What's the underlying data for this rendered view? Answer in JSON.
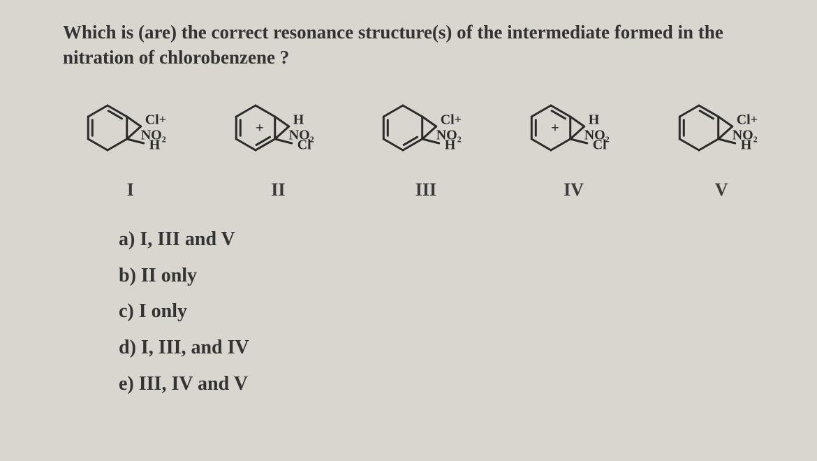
{
  "question": "Which is (are) the correct resonance structure(s) of the intermediate formed in the nitration of chlorobenzene ?",
  "structures": [
    {
      "label": "I",
      "top": "Cl",
      "mid": "H",
      "bot": "NO₂",
      "plusOnRing": false,
      "topOnRing": true,
      "dblTop": false
    },
    {
      "label": "II",
      "top": "H",
      "mid": "Cl",
      "bot": "NO₂",
      "plusOnRing": true,
      "topOnRing": false,
      "dblTop": true
    },
    {
      "label": "III",
      "top": "Cl",
      "mid": "H",
      "bot": "NO₂",
      "plusOnRing": false,
      "topOnRing": true,
      "dblTop": true
    },
    {
      "label": "IV",
      "top": "H",
      "mid": "Cl",
      "bot": "NO₂",
      "plusOnRing": true,
      "topOnRing": false,
      "dblTop": false
    },
    {
      "label": "V",
      "top": "Cl",
      "mid": "H",
      "bot": "NO₂",
      "plusOnRing": false,
      "topOnRing": true,
      "dblTop": false
    }
  ],
  "options": [
    "a)  I, III and V",
    "b) II only",
    "c) I only",
    "d)  I, III, and IV",
    "e) III, IV and V"
  ],
  "style": {
    "stroke": "#2b2b2b",
    "strokeWidth": 3,
    "atomFont": 20,
    "labelFont": 26
  }
}
